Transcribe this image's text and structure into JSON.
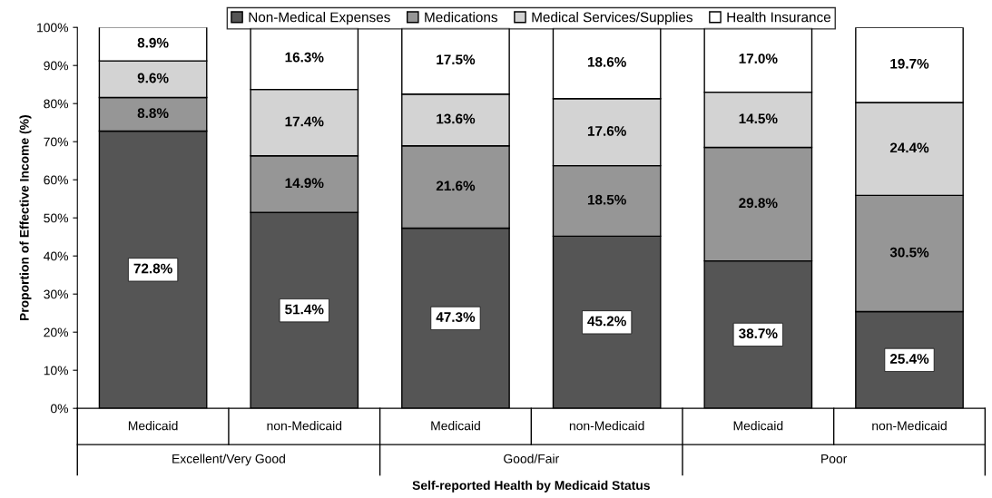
{
  "chart_data": {
    "type": "bar",
    "stacked": true,
    "categories": [
      "Medicaid",
      "non-Medicaid",
      "Medicaid",
      "non-Medicaid",
      "Medicaid",
      "non-Medicaid"
    ],
    "xlabel": "Self-reported Health by Medicaid Status",
    "ylabel": "Proportion of Effective Income (%)",
    "series": [
      {
        "name": "Non-Medical Expenses",
        "color": "#555555",
        "values": [
          72.8,
          51.4,
          47.3,
          45.2,
          38.7,
          25.4
        ],
        "value_labels": [
          "72.8%",
          "51.4%",
          "47.3%",
          "45.2%",
          "38.7%",
          "25.4%"
        ]
      },
      {
        "name": "Medications",
        "color": "#969696",
        "values": [
          8.8,
          14.9,
          21.6,
          18.5,
          29.8,
          30.5
        ],
        "value_labels": [
          "8.8%",
          "14.9%",
          "21.6%",
          "18.5%",
          "29.8%",
          "30.5%"
        ]
      },
      {
        "name": "Medical Services/Supplies",
        "color": "#d3d3d3",
        "values": [
          9.6,
          17.4,
          13.6,
          17.6,
          14.5,
          24.4
        ],
        "value_labels": [
          "9.6%",
          "17.4%",
          "13.6%",
          "17.6%",
          "14.5%",
          "24.4%"
        ]
      },
      {
        "name": "Health Insurance",
        "color": "#ffffff",
        "values": [
          8.9,
          16.3,
          17.5,
          18.6,
          17.0,
          19.7
        ],
        "value_labels": [
          "8.9%",
          "16.3%",
          "17.5%",
          "18.6%",
          "17.0%",
          "19.7%"
        ]
      }
    ],
    "annotations": [
      "Excellent/Very Good",
      "Good/Fair",
      "Poor"
    ],
    "ylim": [
      0,
      100
    ],
    "yticks": [
      {
        "value": 0,
        "label": "0%"
      },
      {
        "value": 10,
        "label": "10%"
      },
      {
        "value": 20,
        "label": "20%"
      },
      {
        "value": 30,
        "label": "30%"
      },
      {
        "value": 40,
        "label": "40%"
      },
      {
        "value": 50,
        "label": "50%"
      },
      {
        "value": 60,
        "label": "60%"
      },
      {
        "value": 70,
        "label": "70%"
      },
      {
        "value": 80,
        "label": "80%"
      },
      {
        "value": 90,
        "label": "90%"
      },
      {
        "value": 100,
        "label": "100%"
      }
    ],
    "legend": "top"
  }
}
